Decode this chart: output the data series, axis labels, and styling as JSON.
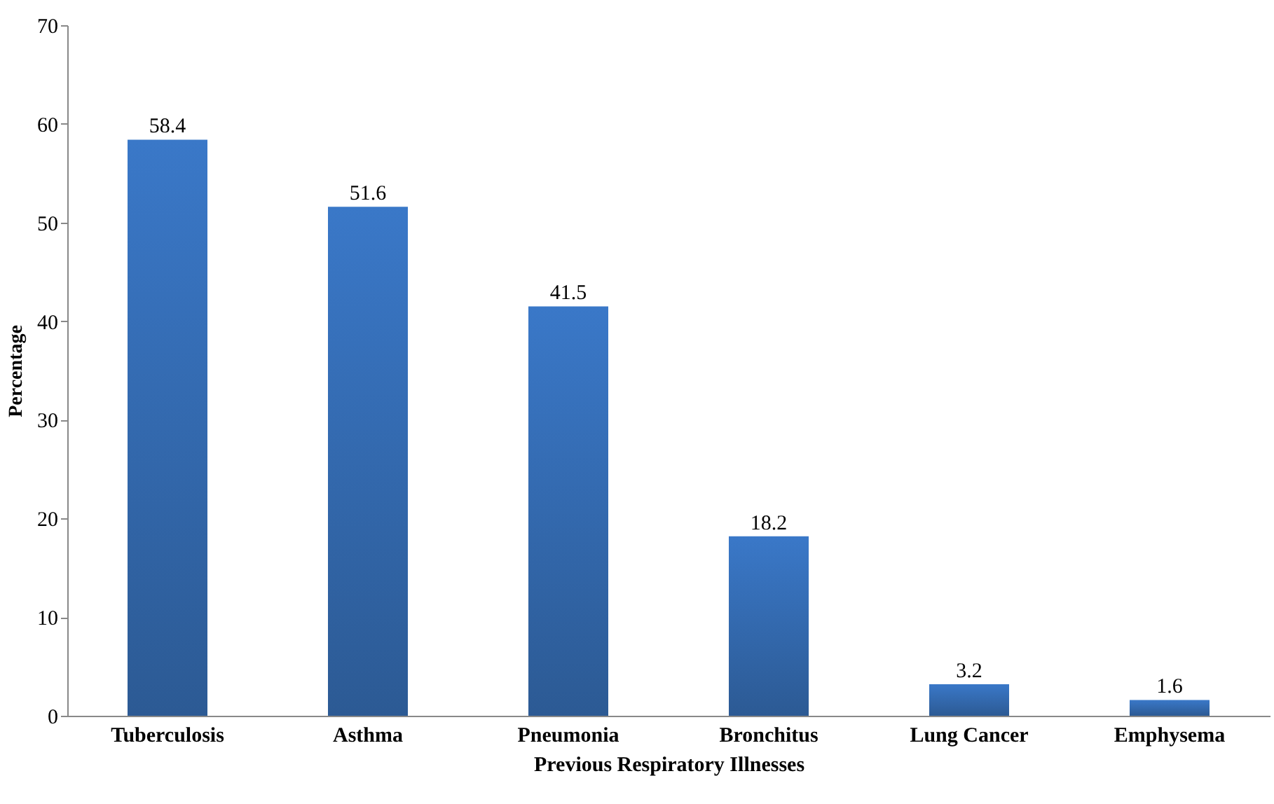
{
  "chart_data": {
    "type": "bar",
    "xlabel": "Previous Respiratory Illnesses",
    "ylabel": "Percentage",
    "categories": [
      "Tuberculosis",
      "Asthma",
      "Pneumonia",
      "Bronchitus",
      "Lung Cancer",
      "Emphysema"
    ],
    "values": [
      58.4,
      51.6,
      41.5,
      18.2,
      3.2,
      1.6
    ],
    "color": "#3a78c8",
    "ylim": [
      0,
      70
    ],
    "yticks": [
      0,
      10,
      20,
      30,
      40,
      50,
      60,
      70
    ],
    "data_labels": true
  }
}
